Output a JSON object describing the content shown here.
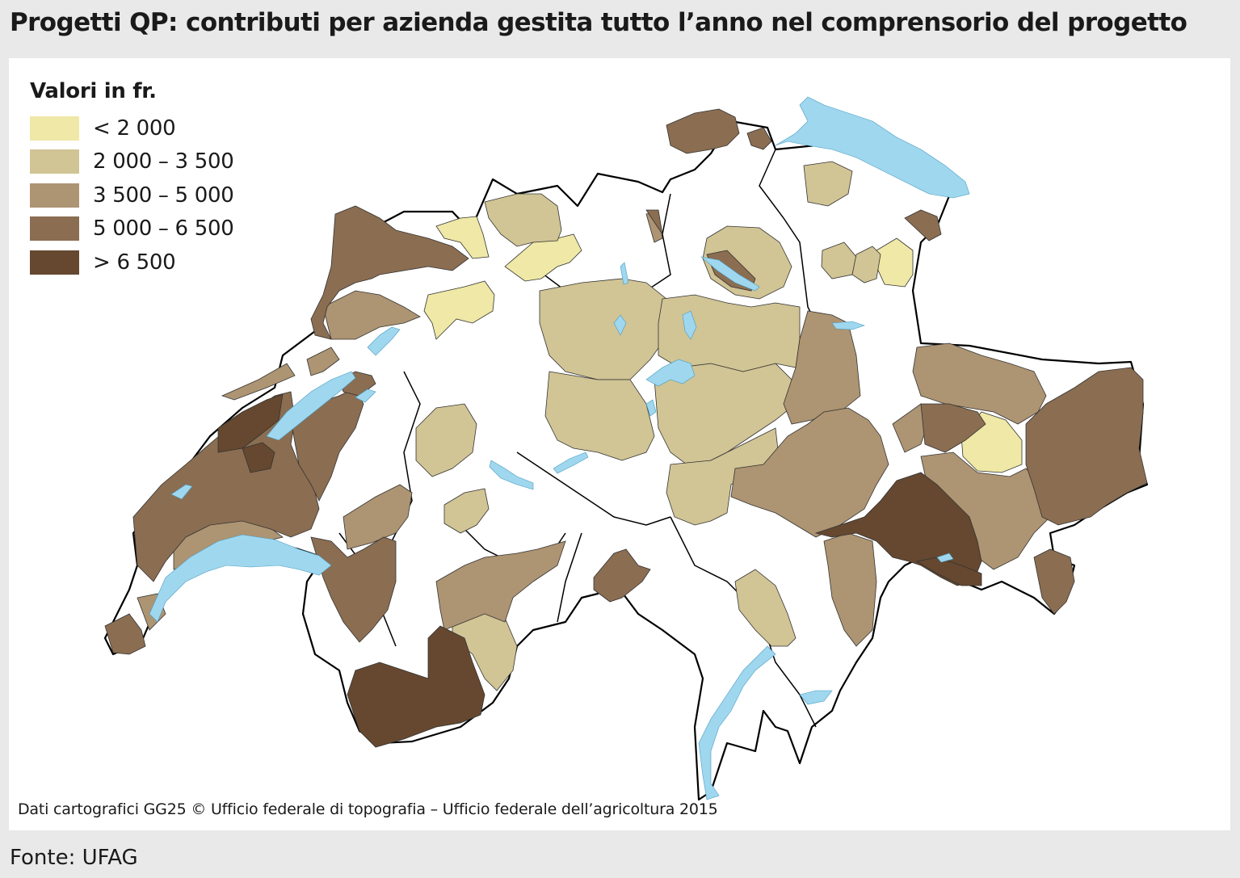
{
  "title": "Progetti QP: contributi per azienda gestita tutto l’anno nel comprensorio del progetto",
  "legend": {
    "title": "Valori in fr.",
    "classes": [
      {
        "label": "< 2 000",
        "color": "#efe8a6"
      },
      {
        "label": "2 000 – 3 500",
        "color": "#d1c495"
      },
      {
        "label": "3 500 – 5 000",
        "color": "#ad9472"
      },
      {
        "label": "5 000 – 6 500",
        "color": "#8b6d51"
      },
      {
        "label": "> 6 500",
        "color": "#65482f"
      }
    ]
  },
  "colors": {
    "lake": "#9fd7ef",
    "border": "#000000",
    "background": "#ffffff",
    "frame": "#e9e9e9"
  },
  "credit": "Dati cartografici GG25 © Ufficio federale di topografia – Ufficio federale dell’agricoltura 2015",
  "source": "Fonte: UFAG"
}
